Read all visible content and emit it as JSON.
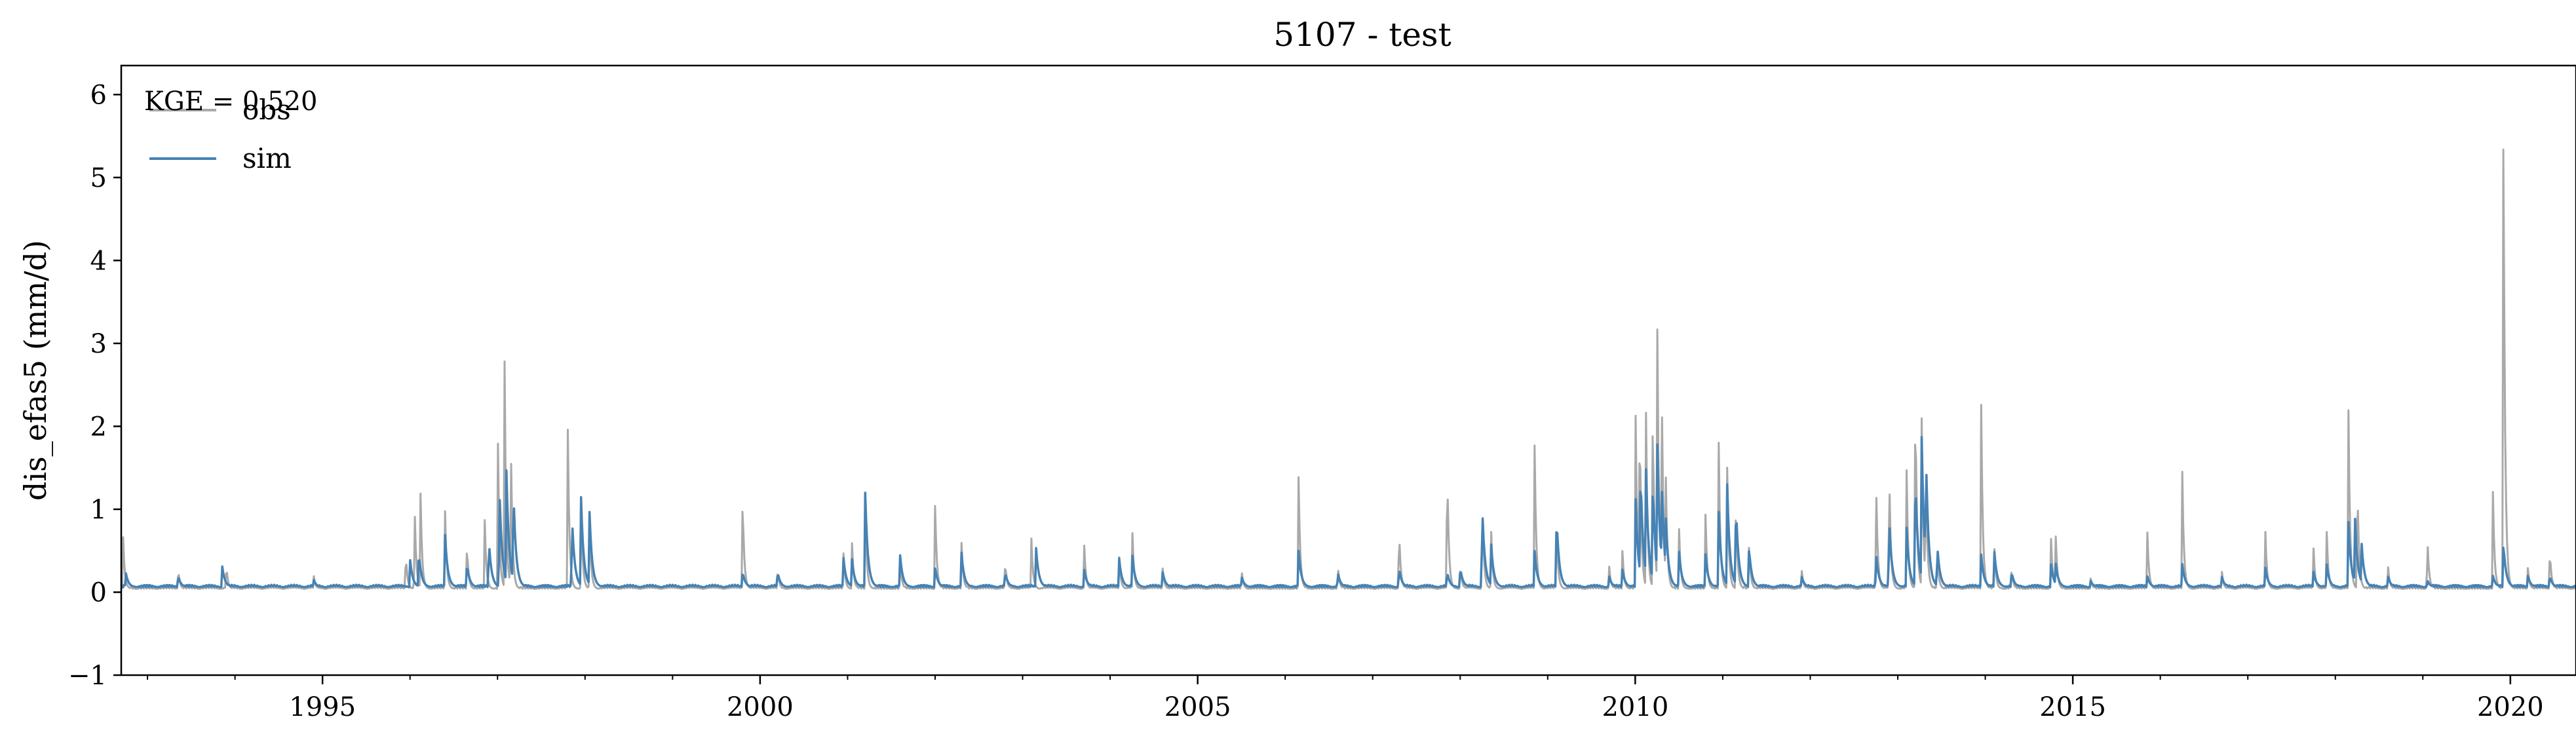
{
  "chart_data": {
    "type": "line",
    "title": "5107 - test",
    "xlabel": "",
    "ylabel": "dis_efas5 (mm/d)",
    "xlim": [
      1992.7,
      2020.75
    ],
    "ylim": [
      -1,
      6.35
    ],
    "yticks": [
      -1,
      0,
      1,
      2,
      3,
      4,
      5,
      6
    ],
    "ytick_labels": [
      "−1",
      "0",
      "1",
      "2",
      "3",
      "4",
      "5",
      "6"
    ],
    "xticks": [
      1995,
      2000,
      2005,
      2010,
      2015,
      2020
    ],
    "xtick_labels": [
      "1995",
      "2000",
      "2005",
      "2010",
      "2015",
      "2020"
    ],
    "grid": false,
    "legend_position": "top-left",
    "annotation": "KGE = 0.520",
    "baseline": {
      "obs": 0.04,
      "sim": 0.06
    },
    "series": [
      {
        "name": "obs",
        "color": "#a9a9a9",
        "peaks": [
          [
            1992.72,
            0.72
          ],
          [
            1993.35,
            0.3
          ],
          [
            1993.9,
            0.35
          ],
          [
            1994.9,
            0.2
          ],
          [
            1995.95,
            0.5
          ],
          [
            1996.05,
            1.2
          ],
          [
            1996.12,
            1.2
          ],
          [
            1996.4,
            1.0
          ],
          [
            1996.65,
            0.6
          ],
          [
            1996.85,
            1.05
          ],
          [
            1997.0,
            2.3
          ],
          [
            1997.08,
            2.8
          ],
          [
            1997.15,
            2.1
          ],
          [
            1997.8,
            2.3
          ],
          [
            1997.95,
            1.4
          ],
          [
            1998.05,
            1.0
          ],
          [
            1999.8,
            1.2
          ],
          [
            2000.2,
            0.3
          ],
          [
            2000.95,
            0.55
          ],
          [
            2001.05,
            0.6
          ],
          [
            2001.2,
            1.1
          ],
          [
            2001.6,
            0.4
          ],
          [
            2002.0,
            1.1
          ],
          [
            2002.3,
            0.65
          ],
          [
            2002.8,
            0.4
          ],
          [
            2003.1,
            0.65
          ],
          [
            2003.7,
            0.7
          ],
          [
            2004.1,
            0.5
          ],
          [
            2004.25,
            0.9
          ],
          [
            2004.6,
            0.3
          ],
          [
            2005.5,
            0.3
          ],
          [
            2006.15,
            1.65
          ],
          [
            2006.6,
            0.35
          ],
          [
            2007.3,
            0.85
          ],
          [
            2007.85,
            1.7
          ],
          [
            2008.0,
            0.35
          ],
          [
            2008.25,
            1.3
          ],
          [
            2008.35,
            0.9
          ],
          [
            2008.85,
            1.8
          ],
          [
            2009.1,
            0.85
          ],
          [
            2009.7,
            0.35
          ],
          [
            2009.85,
            0.6
          ],
          [
            2010.0,
            2.75
          ],
          [
            2010.05,
            2.4
          ],
          [
            2010.12,
            2.6
          ],
          [
            2010.2,
            2.3
          ],
          [
            2010.25,
            3.7
          ],
          [
            2010.3,
            3.05
          ],
          [
            2010.35,
            1.4
          ],
          [
            2010.5,
            0.8
          ],
          [
            2010.8,
            1.1
          ],
          [
            2010.95,
            2.25
          ],
          [
            2011.05,
            1.6
          ],
          [
            2011.15,
            1.2
          ],
          [
            2011.3,
            0.6
          ],
          [
            2011.9,
            0.3
          ],
          [
            2012.75,
            1.55
          ],
          [
            2012.9,
            1.7
          ],
          [
            2013.1,
            1.55
          ],
          [
            2013.2,
            2.6
          ],
          [
            2013.27,
            2.55
          ],
          [
            2013.32,
            1.6
          ],
          [
            2013.45,
            0.5
          ],
          [
            2013.95,
            2.7
          ],
          [
            2014.1,
            0.65
          ],
          [
            2014.3,
            0.3
          ],
          [
            2014.75,
            0.7
          ],
          [
            2014.8,
            0.9
          ],
          [
            2015.2,
            0.2
          ],
          [
            2015.85,
            0.8
          ],
          [
            2016.25,
            1.55
          ],
          [
            2016.7,
            0.3
          ],
          [
            2017.2,
            0.75
          ],
          [
            2017.75,
            0.55
          ],
          [
            2017.9,
            0.8
          ],
          [
            2018.15,
            2.2
          ],
          [
            2018.25,
            1.5
          ],
          [
            2018.6,
            0.35
          ],
          [
            2019.05,
            0.75
          ],
          [
            2019.8,
            1.25
          ],
          [
            2019.92,
            6.05
          ],
          [
            2020.2,
            0.3
          ],
          [
            2020.45,
            0.55
          ]
        ]
      },
      {
        "name": "sim",
        "color": "#4682b4",
        "peaks": [
          [
            1992.75,
            0.25
          ],
          [
            1993.35,
            0.2
          ],
          [
            1993.85,
            0.35
          ],
          [
            1994.9,
            0.15
          ],
          [
            1996.0,
            0.4
          ],
          [
            1996.1,
            0.5
          ],
          [
            1996.4,
            0.7
          ],
          [
            1996.65,
            0.35
          ],
          [
            1996.9,
            0.65
          ],
          [
            1997.02,
            1.35
          ],
          [
            1997.1,
            1.55
          ],
          [
            1997.18,
            1.3
          ],
          [
            1997.85,
            0.95
          ],
          [
            1997.95,
            1.3
          ],
          [
            1998.05,
            1.0
          ],
          [
            1999.8,
            0.25
          ],
          [
            2000.2,
            0.25
          ],
          [
            2000.95,
            0.45
          ],
          [
            2001.05,
            0.4
          ],
          [
            2001.2,
            1.25
          ],
          [
            2001.6,
            0.45
          ],
          [
            2002.0,
            0.3
          ],
          [
            2002.3,
            0.5
          ],
          [
            2002.8,
            0.25
          ],
          [
            2003.15,
            0.6
          ],
          [
            2003.7,
            0.3
          ],
          [
            2004.1,
            0.45
          ],
          [
            2004.25,
            0.5
          ],
          [
            2004.6,
            0.25
          ],
          [
            2005.5,
            0.2
          ],
          [
            2006.15,
            0.55
          ],
          [
            2006.6,
            0.25
          ],
          [
            2007.3,
            0.3
          ],
          [
            2007.85,
            0.25
          ],
          [
            2008.0,
            0.3
          ],
          [
            2008.25,
            1.1
          ],
          [
            2008.35,
            0.65
          ],
          [
            2008.85,
            0.5
          ],
          [
            2009.1,
            0.95
          ],
          [
            2009.7,
            0.2
          ],
          [
            2009.85,
            0.3
          ],
          [
            2010.0,
            1.3
          ],
          [
            2010.06,
            1.55
          ],
          [
            2010.12,
            1.65
          ],
          [
            2010.2,
            1.4
          ],
          [
            2010.25,
            1.95
          ],
          [
            2010.3,
            1.5
          ],
          [
            2010.35,
            0.9
          ],
          [
            2010.5,
            0.5
          ],
          [
            2010.8,
            0.5
          ],
          [
            2010.95,
            1.1
          ],
          [
            2011.05,
            1.35
          ],
          [
            2011.15,
            1.1
          ],
          [
            2011.3,
            0.55
          ],
          [
            2011.9,
            0.2
          ],
          [
            2012.75,
            0.5
          ],
          [
            2012.9,
            0.95
          ],
          [
            2013.1,
            0.8
          ],
          [
            2013.2,
            1.5
          ],
          [
            2013.27,
            2.1
          ],
          [
            2013.32,
            1.8
          ],
          [
            2013.45,
            0.6
          ],
          [
            2013.95,
            0.5
          ],
          [
            2014.1,
            0.55
          ],
          [
            2014.3,
            0.25
          ],
          [
            2014.75,
            0.35
          ],
          [
            2014.8,
            0.4
          ],
          [
            2015.2,
            0.15
          ],
          [
            2015.85,
            0.2
          ],
          [
            2016.25,
            0.35
          ],
          [
            2016.7,
            0.2
          ],
          [
            2017.2,
            0.3
          ],
          [
            2017.75,
            0.25
          ],
          [
            2017.9,
            0.35
          ],
          [
            2018.15,
            0.85
          ],
          [
            2018.22,
            1.05
          ],
          [
            2018.3,
            0.6
          ],
          [
            2018.6,
            0.2
          ],
          [
            2019.05,
            0.15
          ],
          [
            2019.8,
            0.2
          ],
          [
            2019.92,
            0.6
          ],
          [
            2020.2,
            0.2
          ],
          [
            2020.45,
            0.2
          ]
        ]
      }
    ]
  }
}
